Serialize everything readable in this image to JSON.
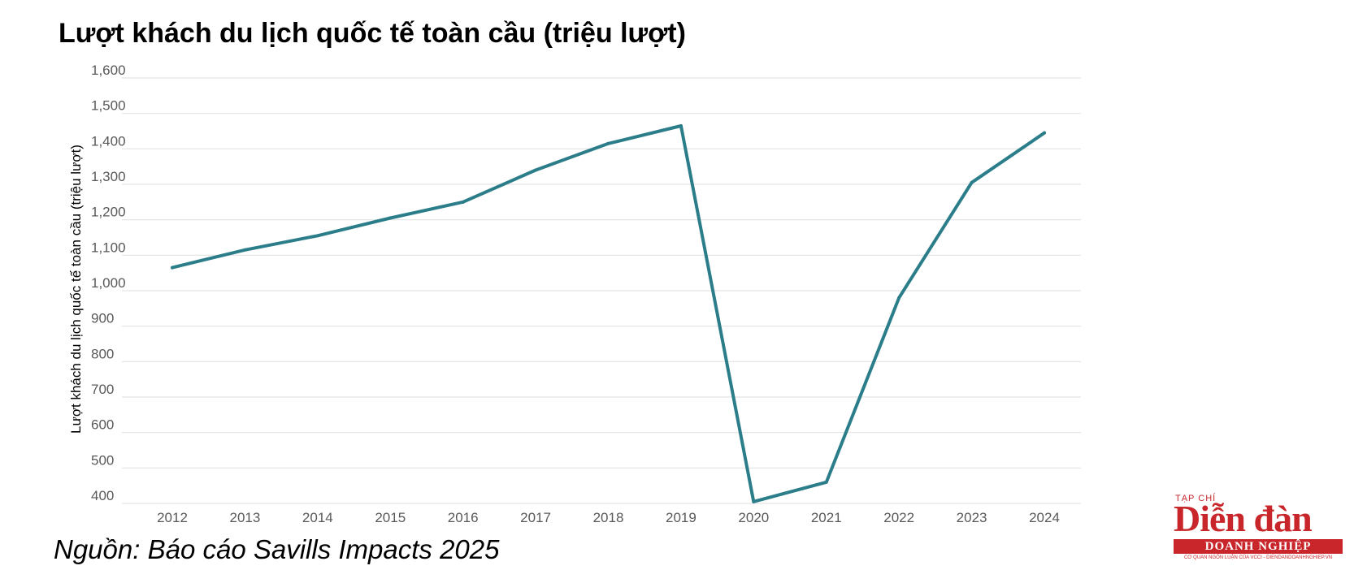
{
  "chart_data": {
    "type": "line",
    "title": "Lượt khách du lịch quốc tế toàn cầu (triệu lượt)",
    "ylabel": "Lượt khách du lịch quốc tế toàn cầu (triệu lượt)",
    "xlabel": "",
    "x": [
      "2012",
      "2013",
      "2014",
      "2015",
      "2016",
      "2017",
      "2018",
      "2019",
      "2020",
      "2021",
      "2022",
      "2023",
      "2024"
    ],
    "series": [
      {
        "values": [
          1065,
          1115,
          1155,
          1205,
          1250,
          1340,
          1415,
          1465,
          405,
          460,
          980,
          1305,
          1445
        ]
      }
    ],
    "yticks": [
      "1,600",
      "1,500",
      "1,400",
      "1,300",
      "1,200",
      "1,100",
      "1,000",
      "900",
      "800",
      "700",
      "600",
      "500",
      "400"
    ],
    "ylim": [
      400,
      1600
    ],
    "grid": true,
    "line_color": "#2b7d8a"
  },
  "source": "Nguồn: Báo cáo Savills Impacts 2025",
  "logo": {
    "top": "TẠP CHÍ",
    "main": "Diễn đàn",
    "band": "DOANH NGHIỆP",
    "bottom": "CƠ QUAN NGÔN LUẬN CỦA VCCI - DIENDANDOANHNGHIEP.VN"
  }
}
